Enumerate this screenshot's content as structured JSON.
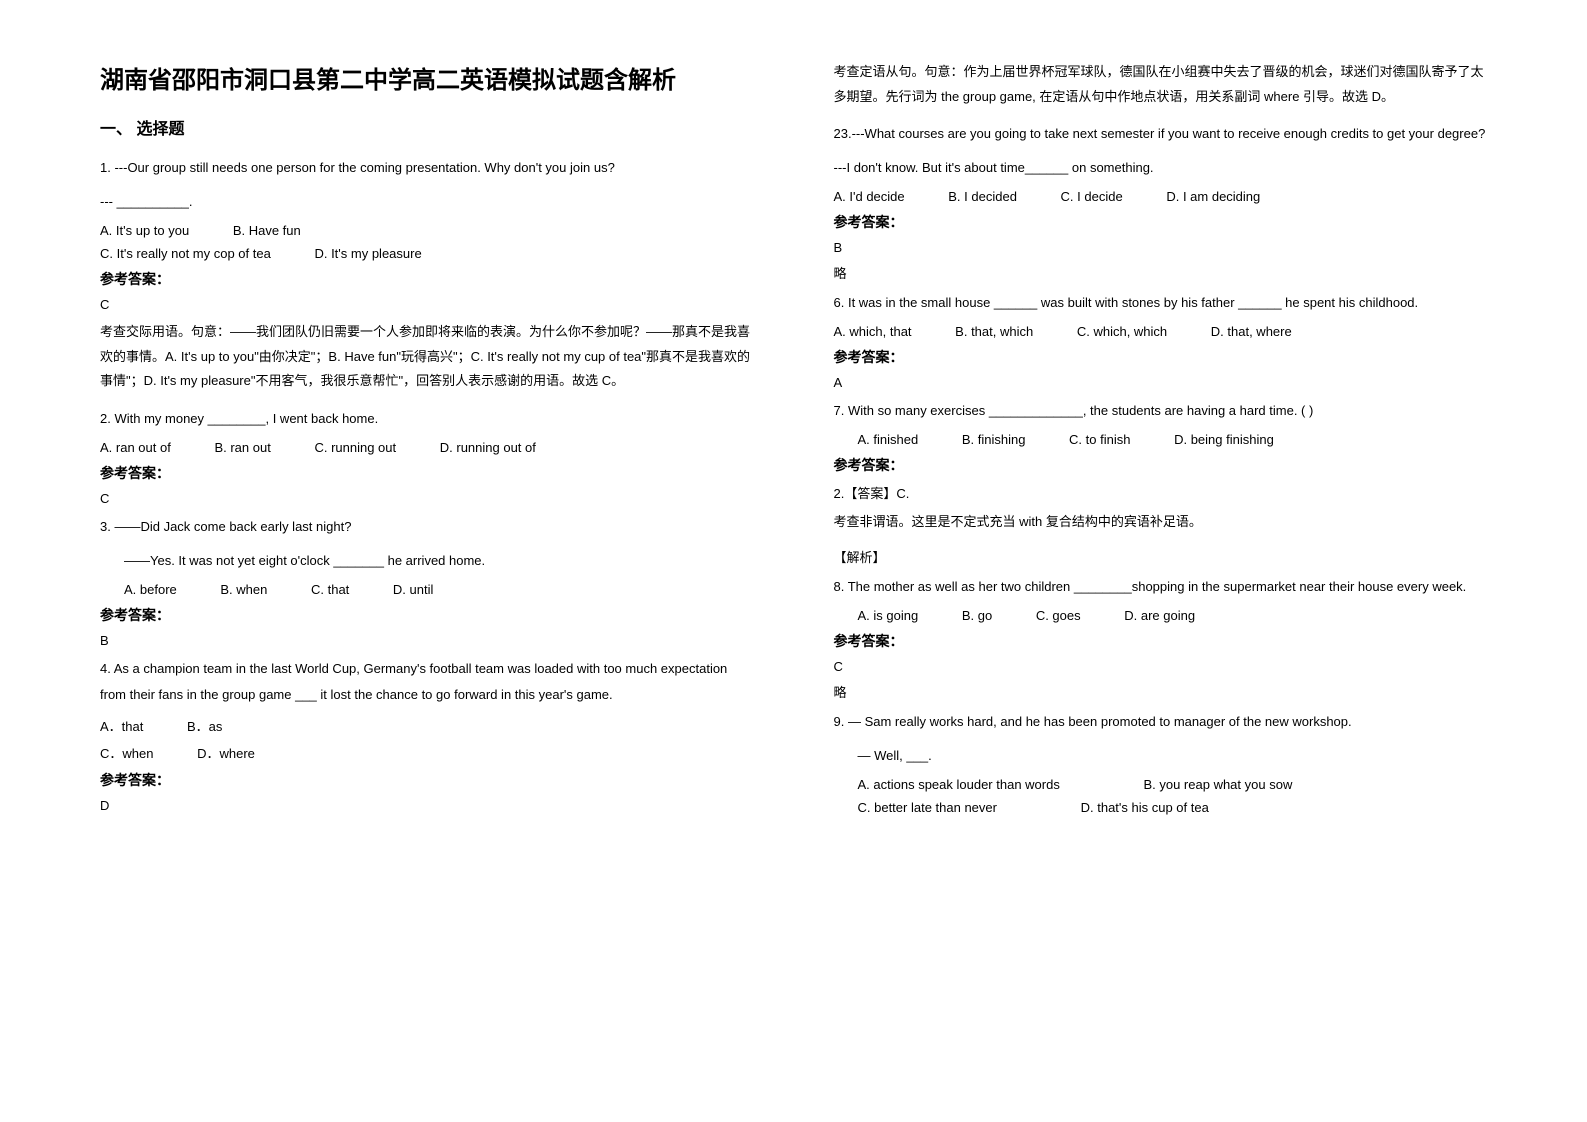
{
  "title": "湖南省邵阳市洞口县第二中学高二英语模拟试题含解析",
  "section1": "一、 选择题",
  "q1": {
    "text": "1. ---Our group still needs one person for the coming presentation. Why don't you join us?",
    "line2": "--- __________.",
    "optA": "A. It's up to you",
    "optB": "B. Have fun",
    "optC": "C. It's really not my cop of tea",
    "optD": "D. It's my pleasure",
    "answerLabel": "参考答案：",
    "answer": "C",
    "explanation": "考查交际用语。句意：——我们团队仍旧需要一个人参加即将来临的表演。为什么你不参加呢？——那真不是我喜欢的事情。A. It's up to you\"由你决定\"；B. Have fun\"玩得高兴\"；C. It's really not my cup of tea\"那真不是我喜欢的事情\"；D. It's my pleasure\"不用客气，我很乐意帮忙\"，回答别人表示感谢的用语。故选 C。"
  },
  "q2": {
    "text": "2. With my money ________, I went back home.",
    "optA": "A. ran out of",
    "optB": "B. ran out",
    "optC": "C. running out",
    "optD": "D. running out of",
    "answerLabel": "参考答案：",
    "answer": "C"
  },
  "q3": {
    "text": "3. ——Did Jack come back early last night?",
    "line2": "——Yes. It was not yet eight o'clock _______ he arrived home.",
    "optA": "A. before",
    "optB": "B. when",
    "optC": "C. that",
    "optD": "D. until",
    "answerLabel": "参考答案：",
    "answer": "B"
  },
  "q4": {
    "text": "4. As a champion team in the last World Cup, Germany's football team was loaded with too much expectation from their fans in the group game ___ it lost the chance to go forward in this year's game.",
    "optA": "A．that",
    "optB": "B．as",
    "optC": "C．when",
    "optD": "D．where",
    "answerLabel": "参考答案：",
    "answer": "D",
    "explanation": "考查定语从句。句意：作为上届世界杯冠军球队，德国队在小组赛中失去了晋级的机会，球迷们对德国队寄予了太多期望。先行词为 the group game, 在定语从句中作地点状语，用关系副词 where 引导。故选 D。"
  },
  "q23": {
    "text": "23.---What courses are you going to take next semester if you want to receive enough credits to get your degree?",
    "line2": "---I don't know. But it's about time______ on something.",
    "optA": "A. I'd decide",
    "optB": "B. I decided",
    "optC": "C. I decide",
    "optD": "D. I am deciding",
    "answerLabel": "参考答案：",
    "answer": "B",
    "extra": "略"
  },
  "q6": {
    "text": "6. It was in the small house ______ was built with stones by his father ______ he spent his childhood.",
    "optA": "A. which, that",
    "optB": "B. that, which",
    "optC": "C. which, which",
    "optD": "D. that, where",
    "answerLabel": "参考答案：",
    "answer": "A"
  },
  "q7": {
    "text": "7. With so many exercises _____________, the students are having a hard time. (  )",
    "optA": "A. finished",
    "optB": "B. finishing",
    "optC": "C. to finish",
    "optD": "D. being finishing",
    "answerLabel": "参考答案：",
    "answerHead": "2.【答案】C.",
    "explanation": "考查非谓语。这里是不定式充当 with 复合结构中的宾语补足语。",
    "explHead": "【解析】"
  },
  "q8": {
    "text": "8. The mother as well as her two children ________shopping in the supermarket near their house every week.",
    "optA": "A. is going",
    "optB": "B. go",
    "optC": "C. goes",
    "optD": "D. are going",
    "answerLabel": "参考答案：",
    "answer": "C",
    "extra": "略"
  },
  "q9": {
    "text": "9. — Sam really works hard, and he has been promoted to manager of the new workshop.",
    "line2": "— Well, ___.",
    "optA": "A. actions speak louder than words",
    "optB": "B. you reap what you sow",
    "optC": "C. better late than never",
    "optD": "D. that's his cup of tea"
  }
}
